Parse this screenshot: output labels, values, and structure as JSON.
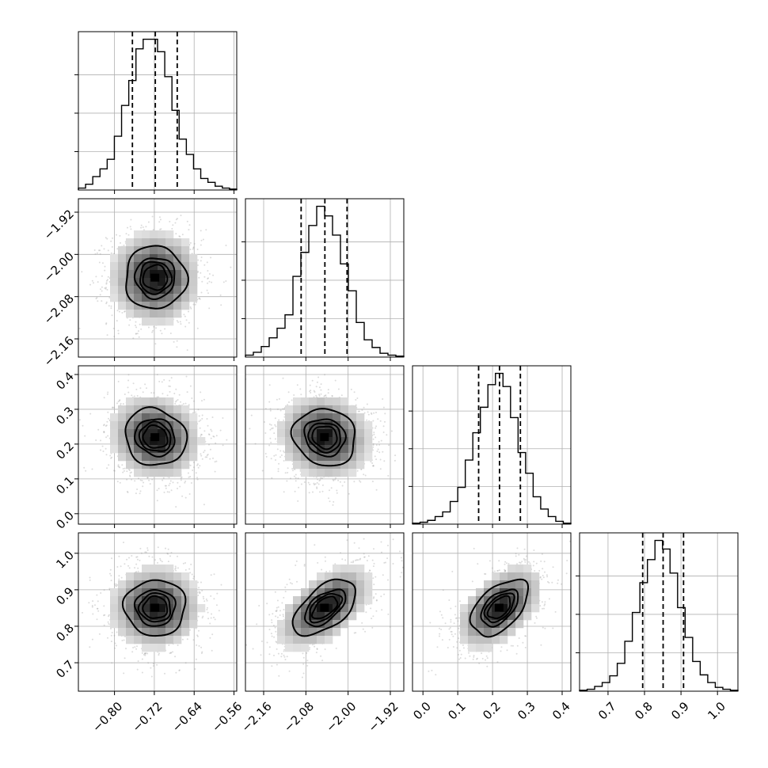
{
  "chart_data": {
    "type": "corner",
    "title": "",
    "parameters": [
      {
        "range": [
          -0.8725,
          -0.5545
        ],
        "ticks": [
          -0.8,
          -0.72,
          -0.64,
          -0.56
        ],
        "tick_labels": [
          "−0.80",
          "−0.72",
          "−0.64",
          "−0.56"
        ],
        "quantiles": [
          -0.764,
          -0.718,
          -0.674
        ],
        "hist": [
          2,
          6,
          14,
          22,
          32,
          56,
          88,
          114,
          147,
          157,
          157,
          144,
          118,
          83,
          53,
          37,
          22,
          12,
          8,
          4,
          2,
          1
        ],
        "hist_ticks": [
          40,
          80,
          120
        ]
      },
      {
        "range": [
          -2.1945,
          -1.8945
        ],
        "ticks": [
          -2.16,
          -2.08,
          -2.0,
          -1.92
        ],
        "tick_labels": [
          "−2.16",
          "−2.08",
          "−2.00",
          "−1.92"
        ],
        "quantiles": [
          -2.089,
          -2.044,
          -2.002
        ],
        "hist": [
          2,
          5,
          11,
          20,
          30,
          44,
          84,
          109,
          137,
          157,
          147,
          127,
          97,
          69,
          36,
          18,
          10,
          4,
          2,
          1
        ],
        "hist_ticks": [
          40,
          80,
          120
        ]
      },
      {
        "range": [
          -0.03,
          0.425
        ],
        "ticks": [
          0.0,
          0.1,
          0.2,
          0.3,
          0.4
        ],
        "tick_labels": [
          "0.0",
          "0.1",
          "0.2",
          "0.3",
          "0.4"
        ],
        "quantiles": [
          0.16,
          0.22,
          0.28
        ],
        "hist": [
          1,
          2,
          4,
          8,
          13,
          24,
          39,
          68,
          97,
          124,
          148,
          160,
          146,
          113,
          76,
          54,
          29,
          16,
          8,
          3,
          1
        ],
        "hist_ticks": [
          40,
          80,
          120
        ]
      },
      {
        "range": [
          0.622,
          1.056
        ],
        "ticks": [
          0.7,
          0.8,
          0.9,
          1.0
        ],
        "tick_labels": [
          "0.7",
          "0.8",
          "0.9",
          "1.0"
        ],
        "quantiles": [
          0.795,
          0.851,
          0.907
        ],
        "hist": [
          1,
          2,
          5,
          9,
          16,
          29,
          52,
          82,
          113,
          137,
          157,
          148,
          123,
          87,
          56,
          31,
          17,
          9,
          4,
          2,
          1
        ],
        "hist_ticks": [
          40,
          80,
          120
        ]
      }
    ],
    "pairs": [
      {
        "row": 1,
        "col": 0,
        "correlation": 0.0
      },
      {
        "row": 2,
        "col": 0,
        "correlation": -0.1
      },
      {
        "row": 2,
        "col": 1,
        "correlation": -0.1
      },
      {
        "row": 3,
        "col": 0,
        "correlation": 0.0
      },
      {
        "row": 3,
        "col": 1,
        "correlation": 0.55
      },
      {
        "row": 3,
        "col": 2,
        "correlation": 0.5
      }
    ],
    "sigma_levels": [
      0.5,
      1.0,
      1.5,
      2.0
    ],
    "colors": {
      "line": "#000000",
      "grid": "#b0b0b0",
      "points": "#9a9a9a"
    }
  }
}
